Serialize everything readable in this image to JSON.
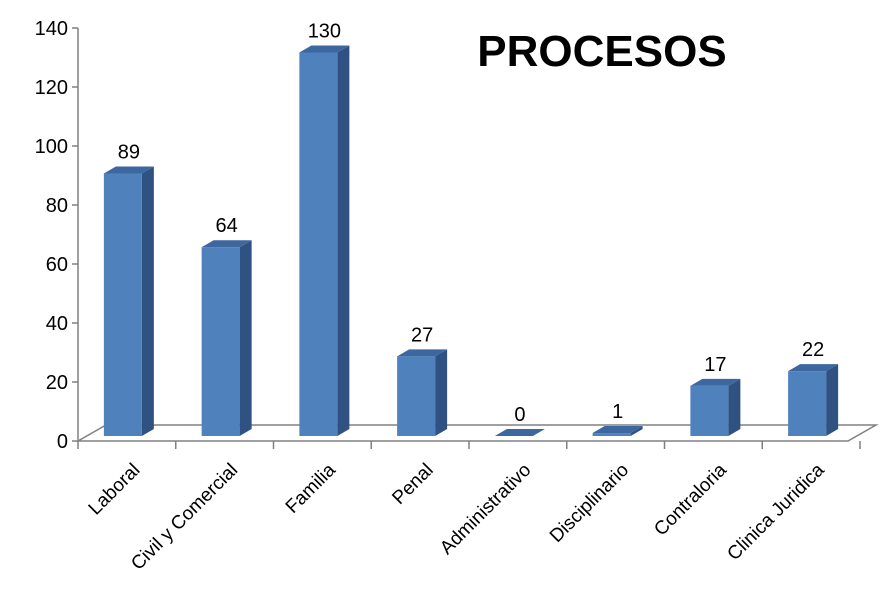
{
  "chart_data": {
    "type": "bar",
    "title": "PROCESOS",
    "categories": [
      "Laboral",
      "Civil y Comercial",
      "Familia",
      "Penal",
      "Administrativo",
      "Disciplinario",
      "Contraloria",
      "Clinica Juridica"
    ],
    "values": [
      89,
      64,
      130,
      27,
      0,
      1,
      17,
      22
    ],
    "data_labels": [
      "89",
      "64",
      "130",
      "27",
      "0",
      "1",
      "17",
      "22"
    ],
    "ylim": [
      0,
      140
    ],
    "yticks": [
      "0",
      "20",
      "40",
      "60",
      "80",
      "100",
      "120",
      "140"
    ],
    "xlabel": "",
    "ylabel": "",
    "grid": false,
    "legend": "none",
    "style": "3d-column",
    "colors": {
      "bar_front": "#4f81bd",
      "bar_side": "#2f5283",
      "bar_top": "#3c679f",
      "axis": "#808080"
    }
  }
}
